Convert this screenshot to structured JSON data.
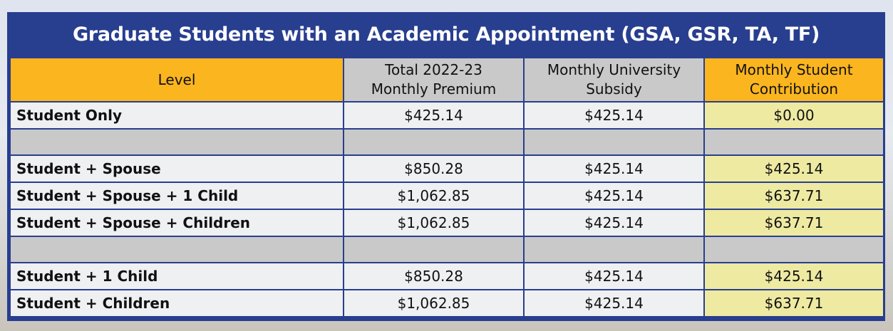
{
  "title": "Graduate Students with an Academic Appointment (GSA, GSR, TA, TF)",
  "headers": {
    "level": "Level",
    "total_line1": "Total 2022-23",
    "total_line2": "Monthly Premium",
    "subsidy_line1": "Monthly University",
    "subsidy_line2": "Subsidy",
    "contrib_line1": "Monthly Student",
    "contrib_line2": "Contribution"
  },
  "rows": [
    {
      "level": "Student Only",
      "total": "$425.14",
      "subsidy": "$425.14",
      "contribution": "$0.00"
    },
    {
      "level": "Student + Spouse",
      "total": "$850.28",
      "subsidy": "$425.14",
      "contribution": "$425.14"
    },
    {
      "level": "Student + Spouse + 1 Child",
      "total": "$1,062.85",
      "subsidy": "$425.14",
      "contribution": "$637.71"
    },
    {
      "level": "Student + Spouse + Children",
      "total": "$1,062.85",
      "subsidy": "$425.14",
      "contribution": "$637.71"
    },
    {
      "level": "Student + 1 Child",
      "total": "$850.28",
      "subsidy": "$425.14",
      "contribution": "$425.14"
    },
    {
      "level": "Student + Children",
      "total": "$1,062.85",
      "subsidy": "$425.14",
      "contribution": "$637.71"
    }
  ],
  "colors": {
    "frame": "#283e8f",
    "header_accent": "#fbb51f",
    "header_gray": "#c9c9c9",
    "contribution_cell": "#eeeaa2",
    "cell": "#eef0f1"
  }
}
